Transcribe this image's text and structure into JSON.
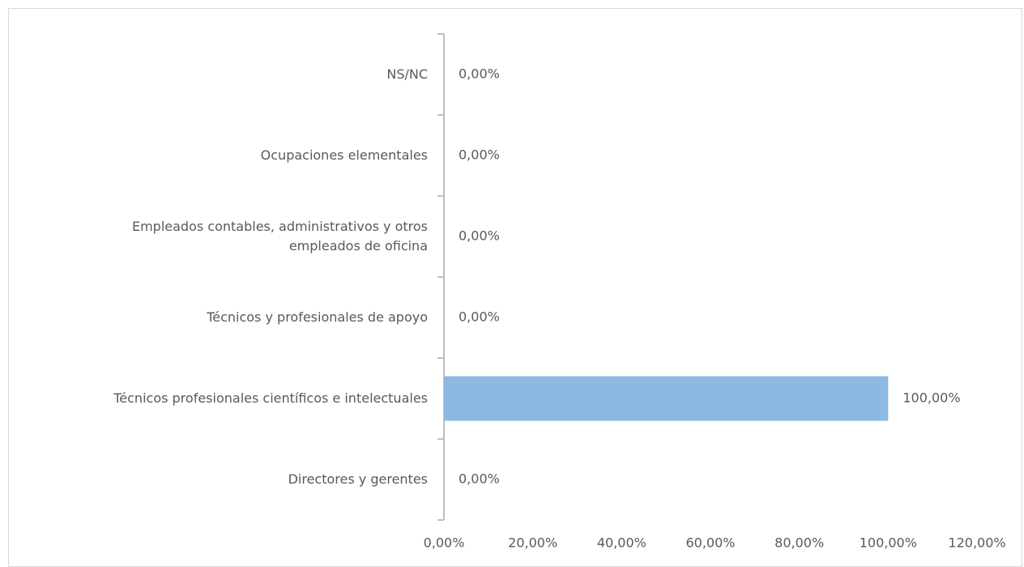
{
  "chart_data": {
    "type": "bar",
    "orientation": "horizontal",
    "categories": [
      "Directores y gerentes",
      "Técnicos profesionales científicos e intelectuales",
      "Técnicos y profesionales de apoyo",
      "Empleados contables, administrativos y otros\nempleados de oficina",
      "Ocupaciones elementales",
      "NS/NC"
    ],
    "values": [
      0,
      100,
      0,
      0,
      0,
      0
    ],
    "value_labels": [
      "0,00%",
      "100,00%",
      "0,00%",
      "0,00%",
      "0,00%",
      "0,00%"
    ],
    "color": "#8db8e2",
    "xlim": [
      0,
      120
    ],
    "xticks": [
      {
        "value": 0,
        "label": "0,00%"
      },
      {
        "value": 20,
        "label": "20,00%"
      },
      {
        "value": 40,
        "label": "40,00%"
      },
      {
        "value": 60,
        "label": "60,00%"
      },
      {
        "value": 80,
        "label": "80,00%"
      },
      {
        "value": 100,
        "label": "100,00%"
      },
      {
        "value": 120,
        "label": "120,00%"
      }
    ],
    "grid": false
  }
}
